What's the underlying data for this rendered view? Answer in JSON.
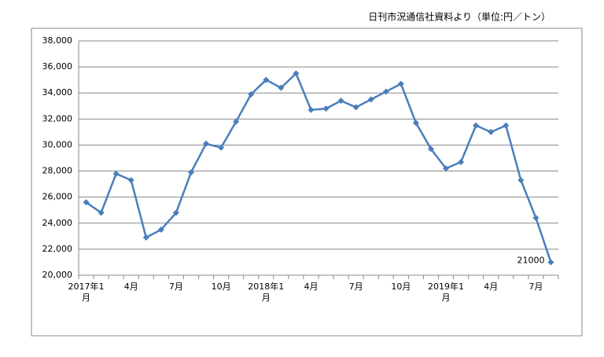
{
  "chart_data": {
    "type": "line",
    "annotation": "日刊市況通信社資料より（単位:円／トン）",
    "categories": [
      "2017年1月",
      null,
      null,
      "4月",
      null,
      null,
      "7月",
      null,
      null,
      "10月",
      null,
      null,
      "2018年1月",
      null,
      null,
      "4月",
      null,
      null,
      "7月",
      null,
      null,
      "10月",
      null,
      null,
      "2019年1月",
      null,
      null,
      "4月",
      null,
      null,
      "7月",
      null
    ],
    "values": [
      25600,
      24800,
      27800,
      27300,
      22900,
      23500,
      24800,
      27900,
      30100,
      29800,
      31800,
      33900,
      35000,
      34400,
      35500,
      32700,
      32800,
      33400,
      32900,
      33500,
      34100,
      34700,
      31700,
      29700,
      28200,
      28700,
      31500,
      31000,
      31500,
      27300,
      24400,
      21000
    ],
    "color": "#4a7ebb",
    "ylim": [
      20000,
      38000
    ],
    "yticks": [
      {
        "value": 20000,
        "label": "20,000"
      },
      {
        "value": 22000,
        "label": "22,000"
      },
      {
        "value": 24000,
        "label": "24,000"
      },
      {
        "value": 26000,
        "label": "26,000"
      },
      {
        "value": 28000,
        "label": "28,000"
      },
      {
        "value": 30000,
        "label": "30,000"
      },
      {
        "value": 32000,
        "label": "32,000"
      },
      {
        "value": 34000,
        "label": "34,000"
      },
      {
        "value": 36000,
        "label": "36,000"
      },
      {
        "value": 38000,
        "label": "38,000"
      }
    ],
    "grid": true
  }
}
